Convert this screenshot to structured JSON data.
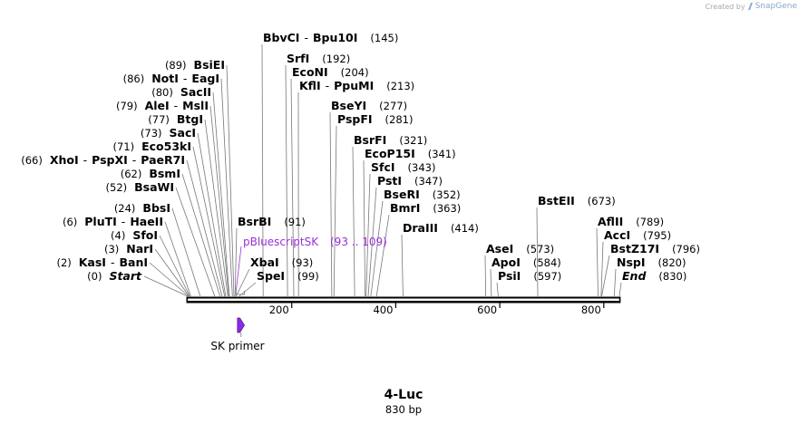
{
  "credit": {
    "text": "Created by",
    "brand": "SnapGene",
    "icon": "snapgene-logo-icon"
  },
  "sequence": {
    "name": "4-Luc",
    "length_label": "830 bp",
    "length": 830
  },
  "axis": {
    "ticks": [
      200,
      400,
      600,
      800
    ]
  },
  "sites": [
    {
      "name": "BbvCI",
      "name2": "Bpu10I",
      "pos": 145,
      "label": "(145)"
    },
    {
      "name": "SrfI",
      "pos": 192,
      "label": "(192)"
    },
    {
      "name": "EcoNI",
      "pos": 204,
      "label": "(204)"
    },
    {
      "name": "KflI",
      "name2": "PpuMI",
      "pos": 213,
      "label": "(213)"
    },
    {
      "name": "BseYI",
      "pos": 277,
      "label": "(277)"
    },
    {
      "name": "PspFI",
      "pos": 281,
      "label": "(281)"
    },
    {
      "name": "BsrFI",
      "pos": 321,
      "label": "(321)"
    },
    {
      "name": "EcoP15I",
      "pos": 341,
      "label": "(341)"
    },
    {
      "name": "SfcI",
      "pos": 343,
      "label": "(343)"
    },
    {
      "name": "PstI",
      "pos": 347,
      "label": "(347)"
    },
    {
      "name": "BseRI",
      "pos": 352,
      "label": "(352)"
    },
    {
      "name": "BmrI",
      "pos": 363,
      "label": "(363)"
    },
    {
      "name": "DraIII",
      "pos": 414,
      "label": "(414)"
    },
    {
      "name": "BsrBI",
      "pos": 91,
      "label": "(91)"
    },
    {
      "name": "XbaI",
      "pos": 93,
      "label": "(93)"
    },
    {
      "name": "SpeI",
      "pos": 99,
      "label": "(99)"
    },
    {
      "name": "BstEII",
      "pos": 673,
      "label": "(673)"
    },
    {
      "name": "AseI",
      "pos": 573,
      "label": "(573)"
    },
    {
      "name": "ApoI",
      "pos": 584,
      "label": "(584)"
    },
    {
      "name": "PsiI",
      "pos": 597,
      "label": "(597)"
    },
    {
      "name": "AflII",
      "pos": 789,
      "label": "(789)"
    },
    {
      "name": "AccI",
      "pos": 795,
      "label": "(795)"
    },
    {
      "name": "BstZ17I",
      "pos": 796,
      "label": "(796)"
    },
    {
      "name": "NspI",
      "pos": 820,
      "label": "(820)"
    },
    {
      "name": "End",
      "pos": 830,
      "label": "(830)",
      "italic": true
    },
    {
      "name": "BsiEI",
      "pos": 89,
      "label": "(89)"
    },
    {
      "name": "NotI",
      "name2": "EagI",
      "pos": 86,
      "label": "(86)"
    },
    {
      "name": "SacII",
      "pos": 80,
      "label": "(80)"
    },
    {
      "name": "AleI",
      "name2": "MslI",
      "pos": 79,
      "label": "(79)"
    },
    {
      "name": "BtgI",
      "pos": 77,
      "label": "(77)"
    },
    {
      "name": "SacI",
      "pos": 73,
      "label": "(73)"
    },
    {
      "name": "Eco53kI",
      "pos": 71,
      "label": "(71)"
    },
    {
      "name": "XhoI",
      "name2": "PspXI",
      "name3": "PaeR7I",
      "pos": 66,
      "label": "(66)"
    },
    {
      "name": "BsmI",
      "pos": 62,
      "label": "(62)"
    },
    {
      "name": "BsaWI",
      "pos": 52,
      "label": "(52)"
    },
    {
      "name": "BbsI",
      "pos": 24,
      "label": "(24)"
    },
    {
      "name": "PluTI",
      "name2": "HaeII",
      "pos": 6,
      "label": "(6)"
    },
    {
      "name": "SfoI",
      "pos": 4,
      "label": "(4)"
    },
    {
      "name": "NarI",
      "pos": 3,
      "label": "(3)"
    },
    {
      "name": "KasI",
      "name2": "BanI",
      "pos": 2,
      "label": "(2)"
    },
    {
      "name": "Start",
      "pos": 0,
      "label": "(0)",
      "italic": true
    }
  ],
  "features": {
    "region": {
      "name": "pBluescriptSK",
      "range_label": "(93 .. 109)",
      "start": 93,
      "end": 109,
      "color": "#9b30d9"
    },
    "primer": {
      "name": "SK primer",
      "start": 93,
      "end": 109,
      "color": "#8a2be2"
    }
  }
}
